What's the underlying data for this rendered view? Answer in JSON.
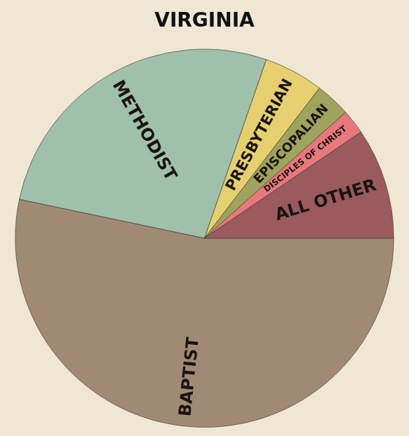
{
  "chart_data": {
    "type": "pie",
    "title": "VIRGINIA",
    "categories": [
      "BAPTIST",
      "METHODIST",
      "PRESBYTERIAN",
      "EPISCOPALIAN",
      "DISCIPLES OF CHRIST",
      "ALL OTHER"
    ],
    "values": [
      53.3,
      27.0,
      5.1,
      3.0,
      2.1,
      9.5
    ],
    "colors": [
      "#a08a76",
      "#9fc0aa",
      "#e6cf6e",
      "#9ea45e",
      "#e8787c",
      "#9a5a5e"
    ]
  }
}
